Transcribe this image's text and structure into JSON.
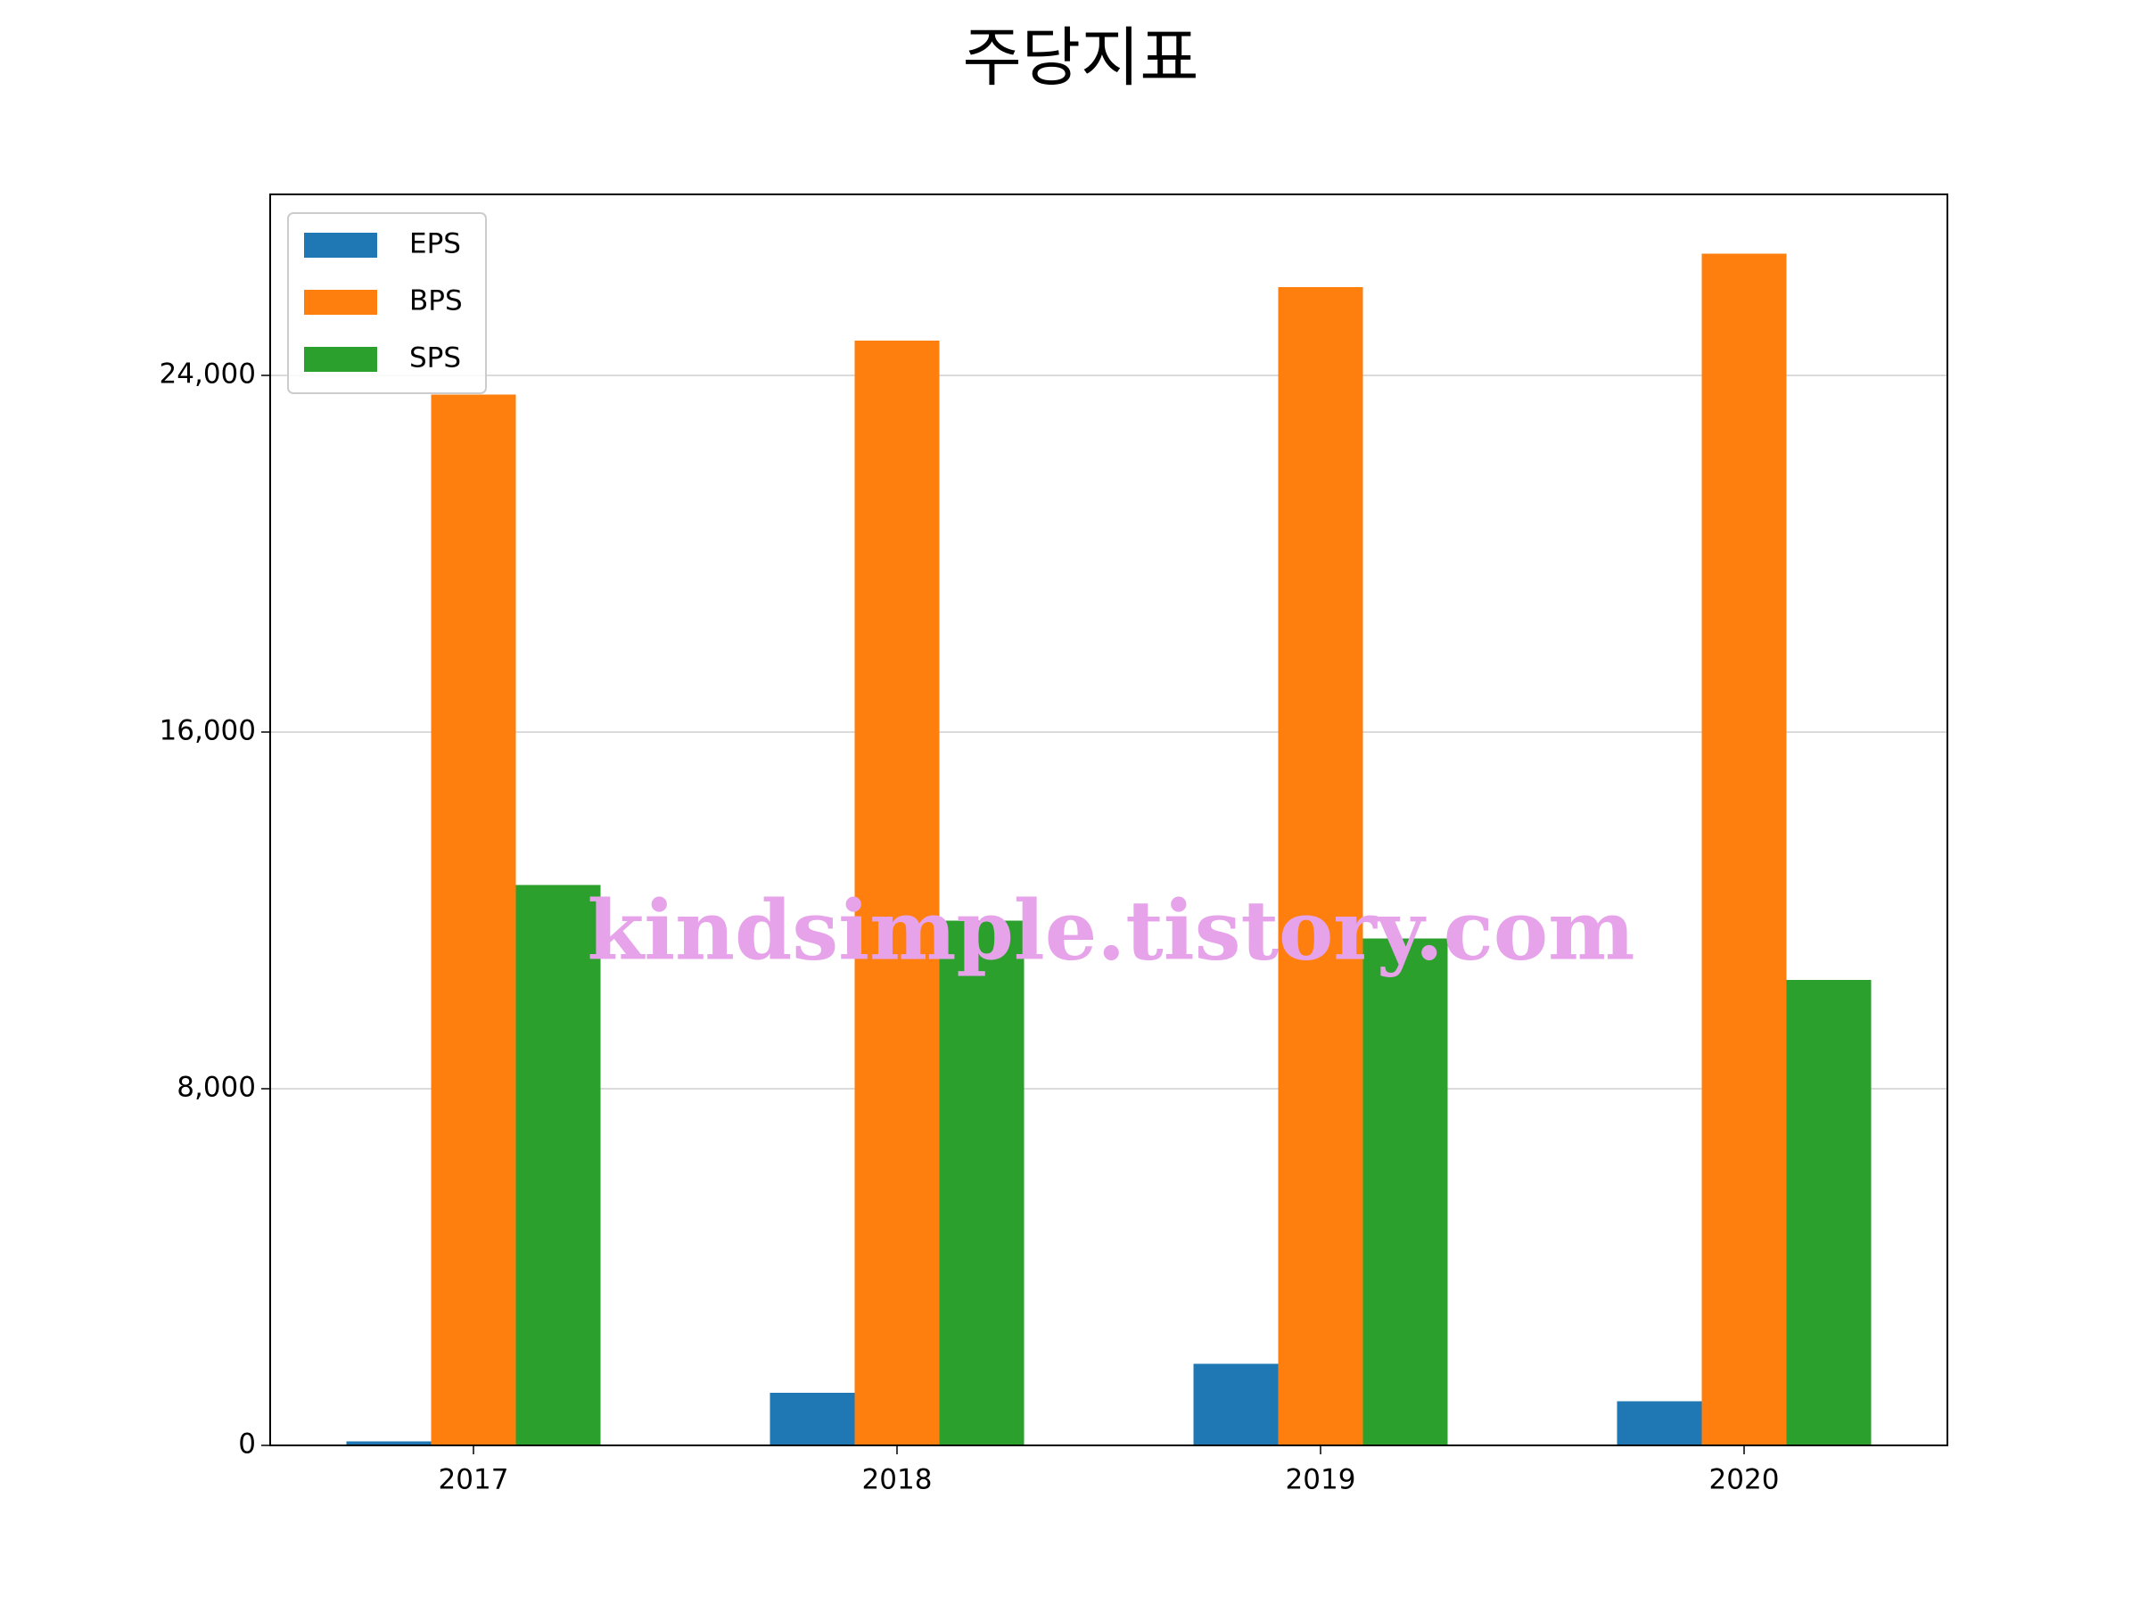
{
  "chart_data": {
    "type": "bar",
    "title": "주당지표",
    "categories": [
      "2017",
      "2018",
      "2019",
      "2020"
    ],
    "series": [
      {
        "name": "EPS",
        "color": "#1f77b4",
        "values": [
          90,
          1180,
          1830,
          990
        ]
      },
      {
        "name": "BPS",
        "color": "#ff7f0e",
        "values": [
          23570,
          24780,
          25980,
          26730
        ]
      },
      {
        "name": "SPS",
        "color": "#2ca02c",
        "values": [
          12570,
          11770,
          11370,
          10440
        ]
      }
    ],
    "ylim": [
      0,
      28060
    ],
    "yticks": [
      0,
      {
        "value": 8000,
        "label": "8,000"
      },
      {
        "value": 16000,
        "label": "16,000"
      },
      {
        "value": 24000,
        "label": "24,000"
      }
    ],
    "grid": true,
    "legend": "upper left",
    "watermark": "kindsimple.tistory.com"
  }
}
